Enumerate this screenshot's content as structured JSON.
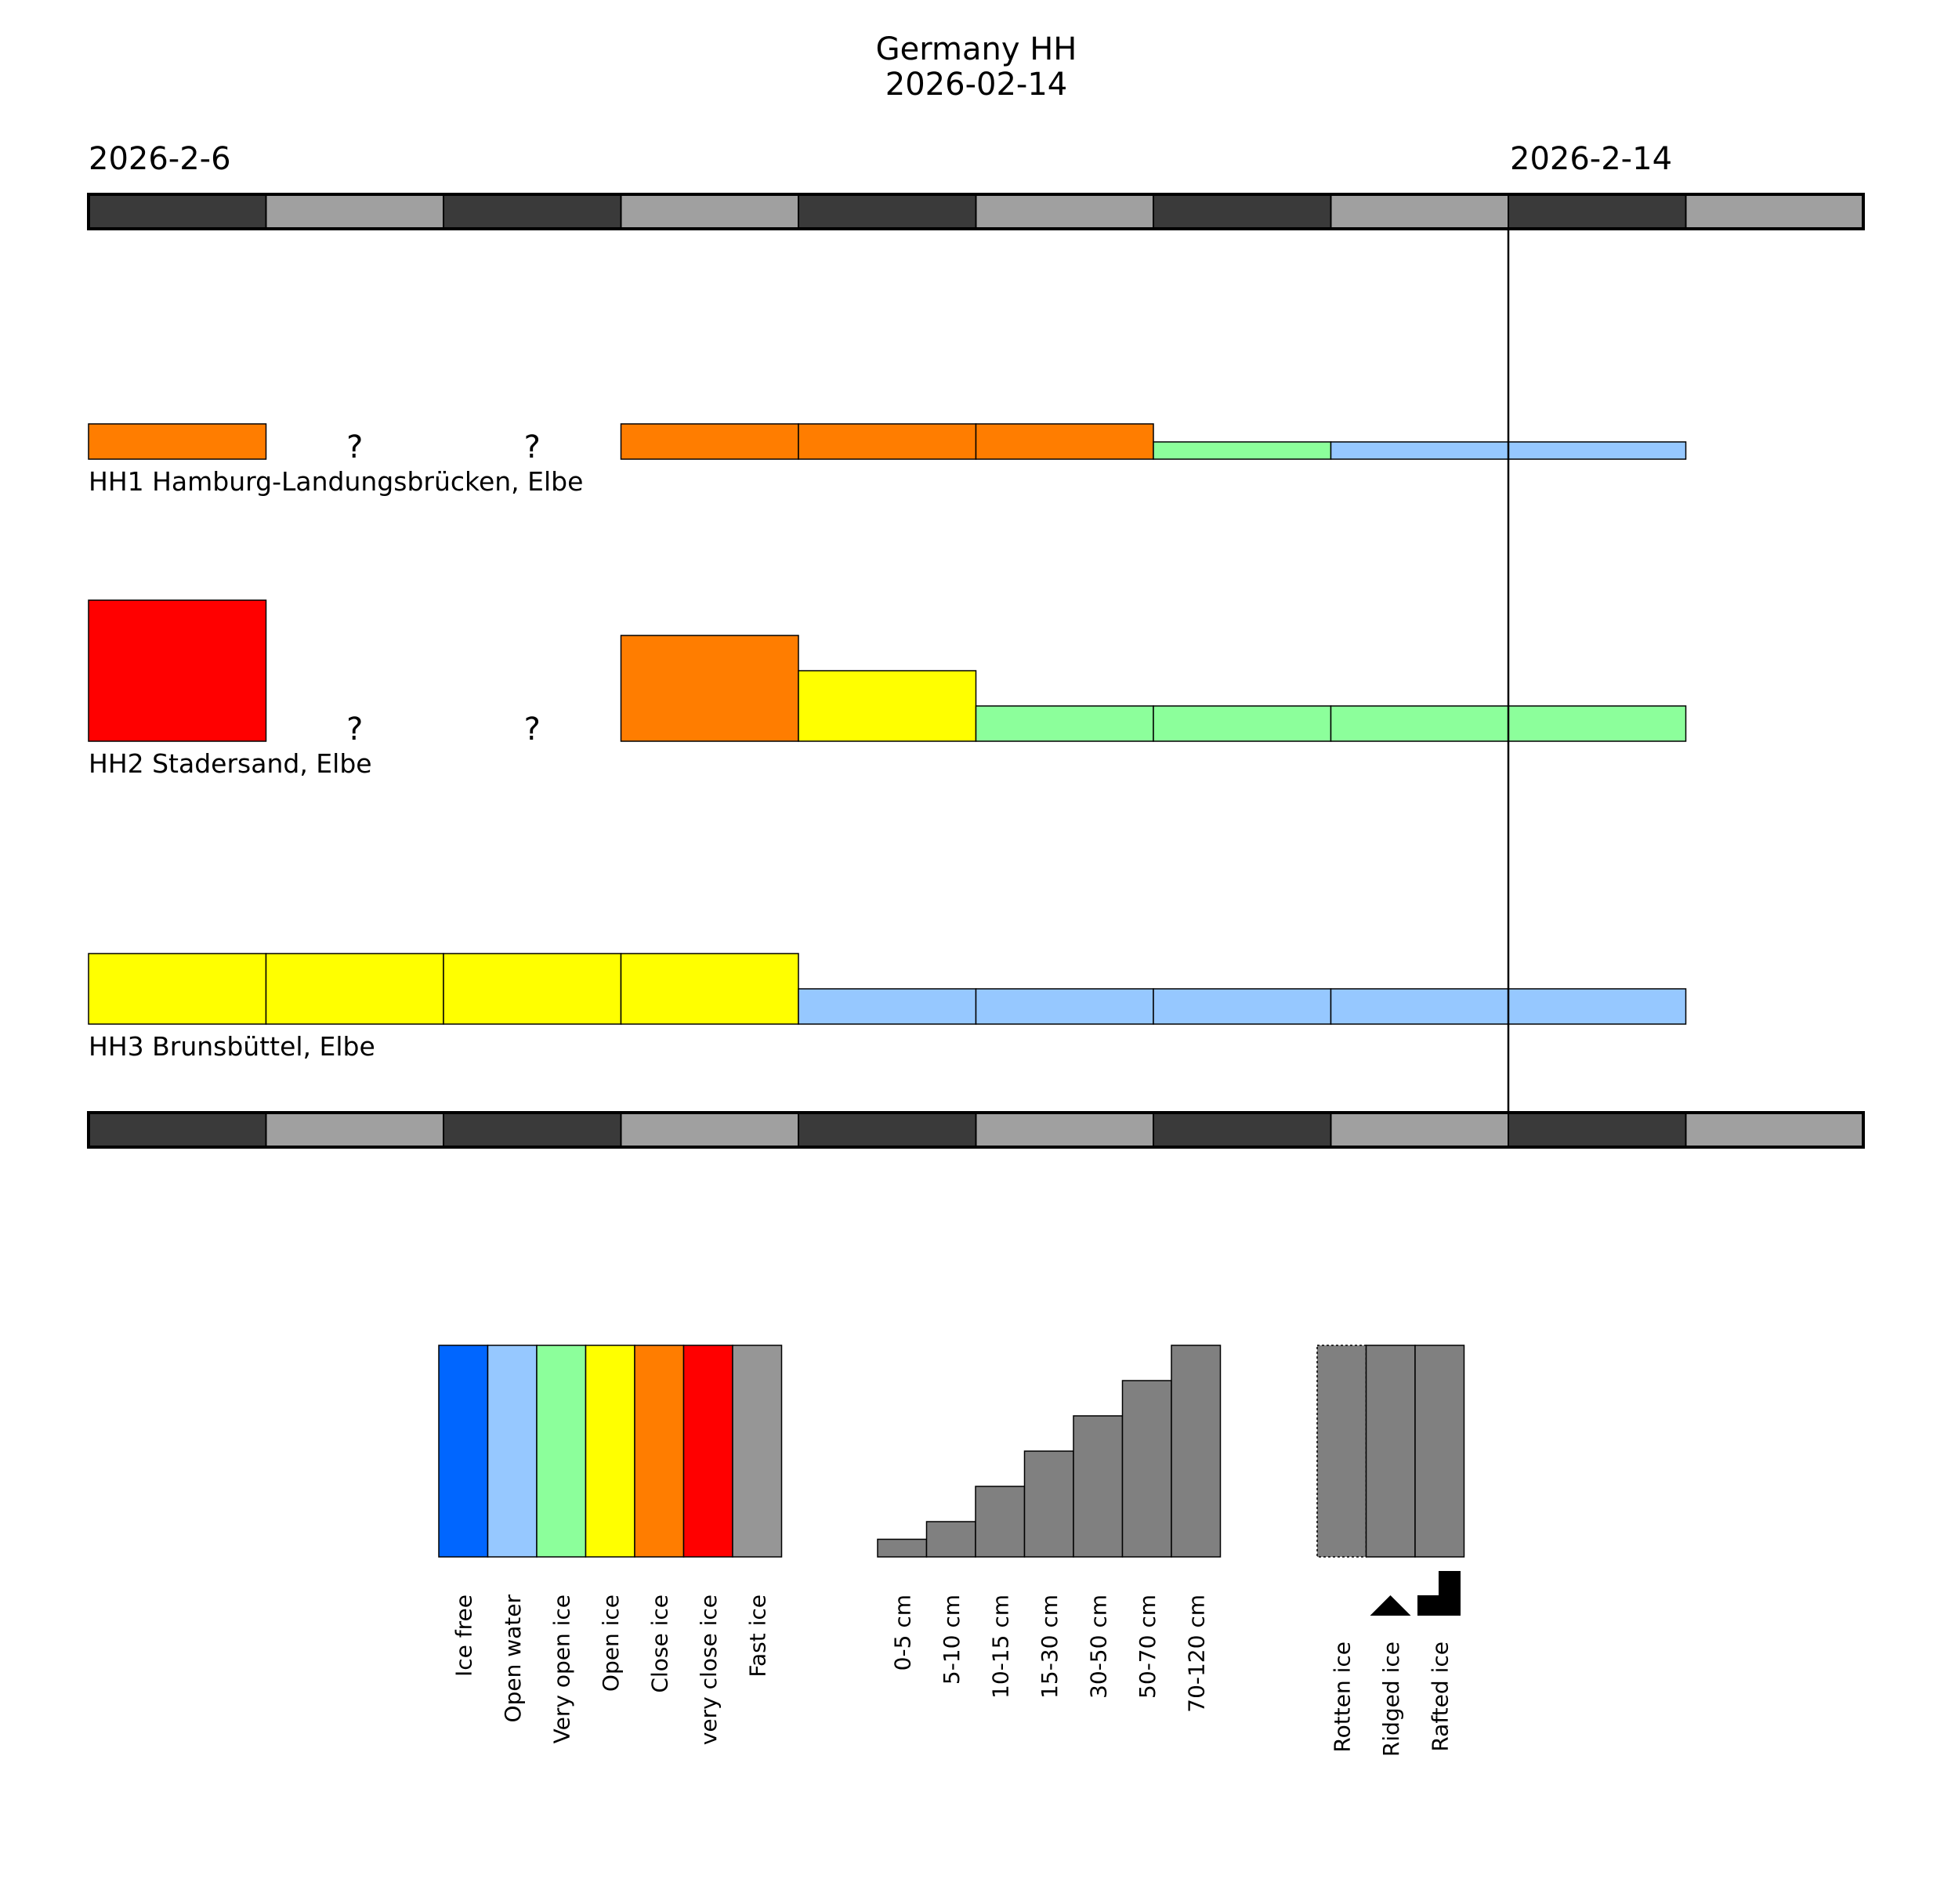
{
  "chart_data": {
    "type": "timeline",
    "title": [
      "Germany HH",
      "2026-02-14"
    ],
    "start_label": "2026-2-6",
    "current_label": "2026-2-14",
    "num_days": 10,
    "current_day_index": 8,
    "colors": {
      "ice_free": "#0066ff",
      "open_water": "#96c8ff",
      "very_open_ice": "#8cff9b",
      "open_ice": "#ffff00",
      "close_ice": "#ff7d00",
      "very_close_ice": "#ff0000",
      "fast_ice": "#969696",
      "thickness_bar": "#808080",
      "day_dark": "#3a3a3a",
      "day_light": "#a0a0a0"
    },
    "missing_symbol": "?",
    "stations": [
      {
        "name": "HH1 Hamburg-Landungsbrücken, Elbe",
        "days": [
          {
            "concentration": "close_ice",
            "thickness_class": 1
          },
          null,
          null,
          {
            "concentration": "close_ice",
            "thickness_class": 1
          },
          {
            "concentration": "close_ice",
            "thickness_class": 1
          },
          {
            "concentration": "close_ice",
            "thickness_class": 1
          },
          {
            "concentration": "very_open_ice",
            "thickness_class": 0
          },
          {
            "concentration": "open_water",
            "thickness_class": 0
          },
          {
            "concentration": "open_water",
            "thickness_class": 0
          }
        ]
      },
      {
        "name": "HH2 Stadersand, Elbe",
        "days": [
          {
            "concentration": "very_close_ice",
            "thickness_class": 4
          },
          null,
          null,
          {
            "concentration": "close_ice",
            "thickness_class": 3
          },
          {
            "concentration": "open_ice",
            "thickness_class": 2
          },
          {
            "concentration": "very_open_ice",
            "thickness_class": 1
          },
          {
            "concentration": "very_open_ice",
            "thickness_class": 1
          },
          {
            "concentration": "very_open_ice",
            "thickness_class": 1
          },
          {
            "concentration": "very_open_ice",
            "thickness_class": 1
          }
        ]
      },
      {
        "name": "HH3 Brunsbüttel, Elbe",
        "days": [
          {
            "concentration": "open_ice",
            "thickness_class": 2
          },
          {
            "concentration": "open_ice",
            "thickness_class": 2
          },
          {
            "concentration": "open_ice",
            "thickness_class": 2
          },
          {
            "concentration": "open_ice",
            "thickness_class": 2
          },
          {
            "concentration": "open_water",
            "thickness_class": 1
          },
          {
            "concentration": "open_water",
            "thickness_class": 1
          },
          {
            "concentration": "open_water",
            "thickness_class": 1
          },
          {
            "concentration": "open_water",
            "thickness_class": 1
          },
          {
            "concentration": "open_water",
            "thickness_class": 1
          }
        ]
      }
    ],
    "legend_concentration": [
      {
        "key": "ice_free",
        "label": "Ice free"
      },
      {
        "key": "open_water",
        "label": "Open water"
      },
      {
        "key": "very_open_ice",
        "label": "Very open ice"
      },
      {
        "key": "open_ice",
        "label": "Open ice"
      },
      {
        "key": "close_ice",
        "label": "Close ice"
      },
      {
        "key": "very_close_ice",
        "label": "very close ice"
      },
      {
        "key": "fast_ice",
        "label": "Fast ice"
      }
    ],
    "legend_thickness": [
      {
        "label": "0-5 cm",
        "class": 0.5
      },
      {
        "label": "5-10 cm",
        "class": 1
      },
      {
        "label": "10-15 cm",
        "class": 2
      },
      {
        "label": "15-30 cm",
        "class": 3
      },
      {
        "label": "30-50 cm",
        "class": 4
      },
      {
        "label": "50-70 cm",
        "class": 5
      },
      {
        "label": "70-120 cm",
        "class": 6
      }
    ],
    "legend_ice_types": [
      {
        "label": "Rotten ice",
        "symbol": "rotten"
      },
      {
        "label": "Ridged ice",
        "symbol": "ridged"
      },
      {
        "label": "Rafted ice",
        "symbol": "rafted"
      }
    ]
  }
}
